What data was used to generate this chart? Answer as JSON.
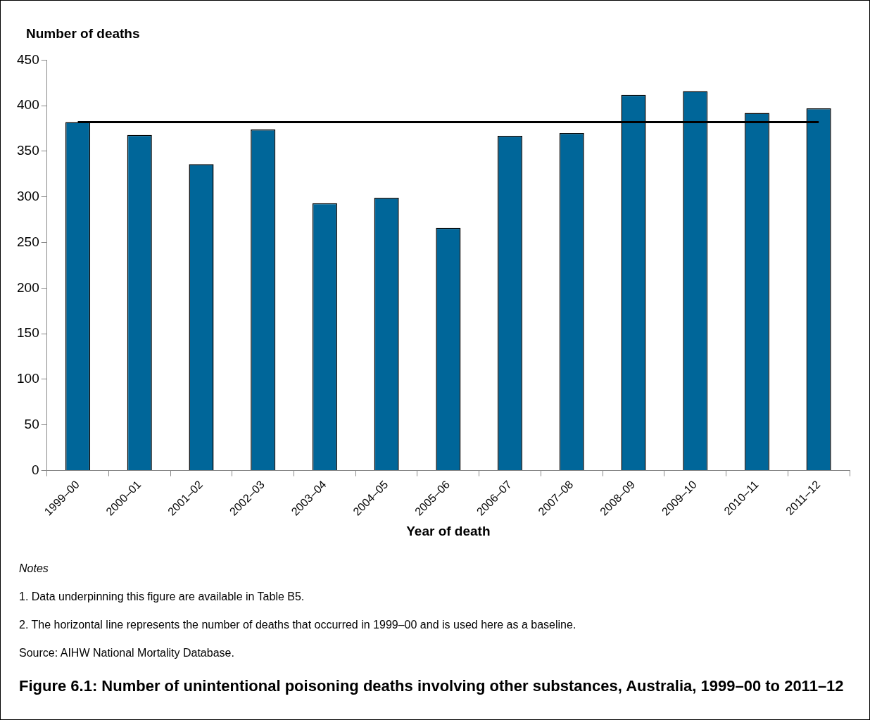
{
  "chart_data": {
    "type": "bar",
    "title": "Figure 6.1: Number of unintentional poisoning deaths involving other substances, Australia, 1999–00 to 2011–12",
    "xlabel": "Year of death",
    "ylabel": "Number of deaths",
    "categories": [
      "1999–00",
      "2000–01",
      "2001–02",
      "2002–03",
      "2003–04",
      "2004–05",
      "2005–06",
      "2006–07",
      "2007–08",
      "2008–09",
      "2009–10",
      "2010–11",
      "2011–12"
    ],
    "values": [
      382,
      368,
      336,
      374,
      293,
      299,
      266,
      367,
      370,
      412,
      416,
      392,
      397
    ],
    "color": "#006699",
    "ylim": [
      0,
      450
    ],
    "yticks": [
      0,
      50,
      100,
      150,
      200,
      250,
      300,
      350,
      400,
      450
    ],
    "grid": false,
    "legend": false,
    "ref_lines": [
      {
        "axis": "y",
        "value": 382,
        "color": "#000000"
      }
    ],
    "annotations": [
      "Notes",
      "1.    Data underpinning this figure are available in Table B5.",
      "2.    The horizontal line represents the number of deaths that occurred in 1999–00 and is used here as a baseline.",
      "Source: AIHW National Mortality Database."
    ]
  }
}
